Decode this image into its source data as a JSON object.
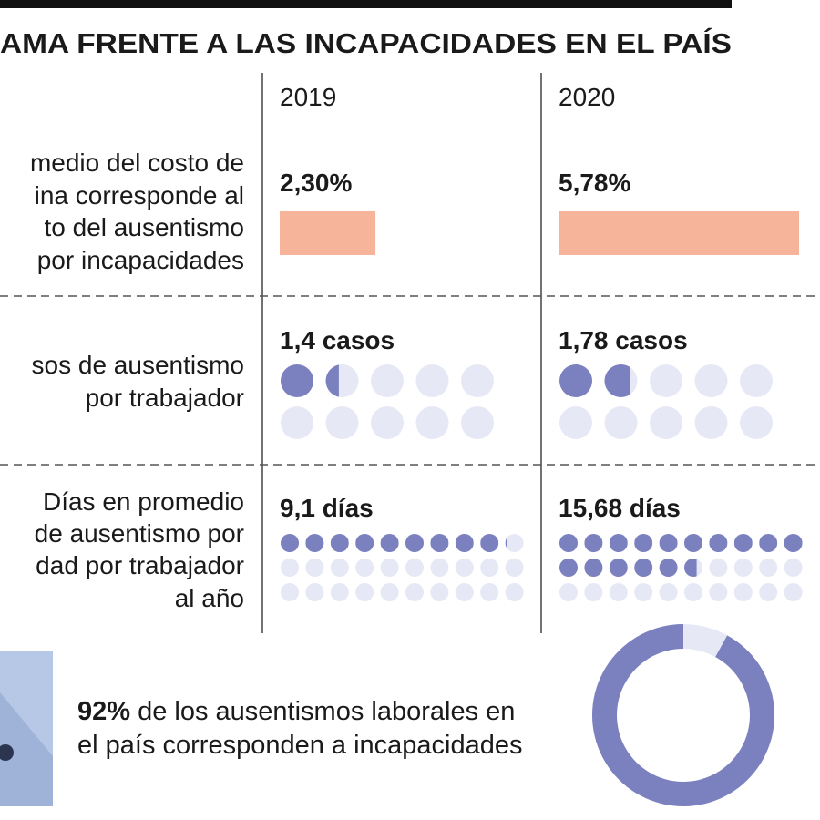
{
  "header": {
    "title": "AMA FRENTE A LAS INCAPACIDADES EN EL PAÍS"
  },
  "columns": [
    "2019",
    "2020"
  ],
  "rows": [
    {
      "label_lines": [
        "medio del costo de",
        "ina corresponde al",
        "to del ausentismo",
        "por incapacidades"
      ],
      "values": [
        {
          "value": 2.3,
          "label": "2,30%"
        },
        {
          "value": 5.78,
          "label": "5,78%"
        }
      ]
    },
    {
      "label_lines": [
        "sos de ausentismo",
        "por trabajador"
      ],
      "values": [
        {
          "value": 1.4,
          "label": "1,4 casos"
        },
        {
          "value": 1.78,
          "label": "1,78 casos"
        }
      ]
    },
    {
      "label_lines": [
        "Días en promedio",
        "de ausentismo por",
        "dad por trabajador",
        "al año"
      ],
      "values": [
        {
          "value": 9.1,
          "label": "9,1 días"
        },
        {
          "value": 15.68,
          "label": "15,68 días"
        }
      ]
    }
  ],
  "footer": {
    "highlight": {
      "value": 92,
      "label": "92%"
    },
    "text_lines": [
      " de los ausentismos laborales en",
      "el país corresponden a incapacidades"
    ]
  }
}
